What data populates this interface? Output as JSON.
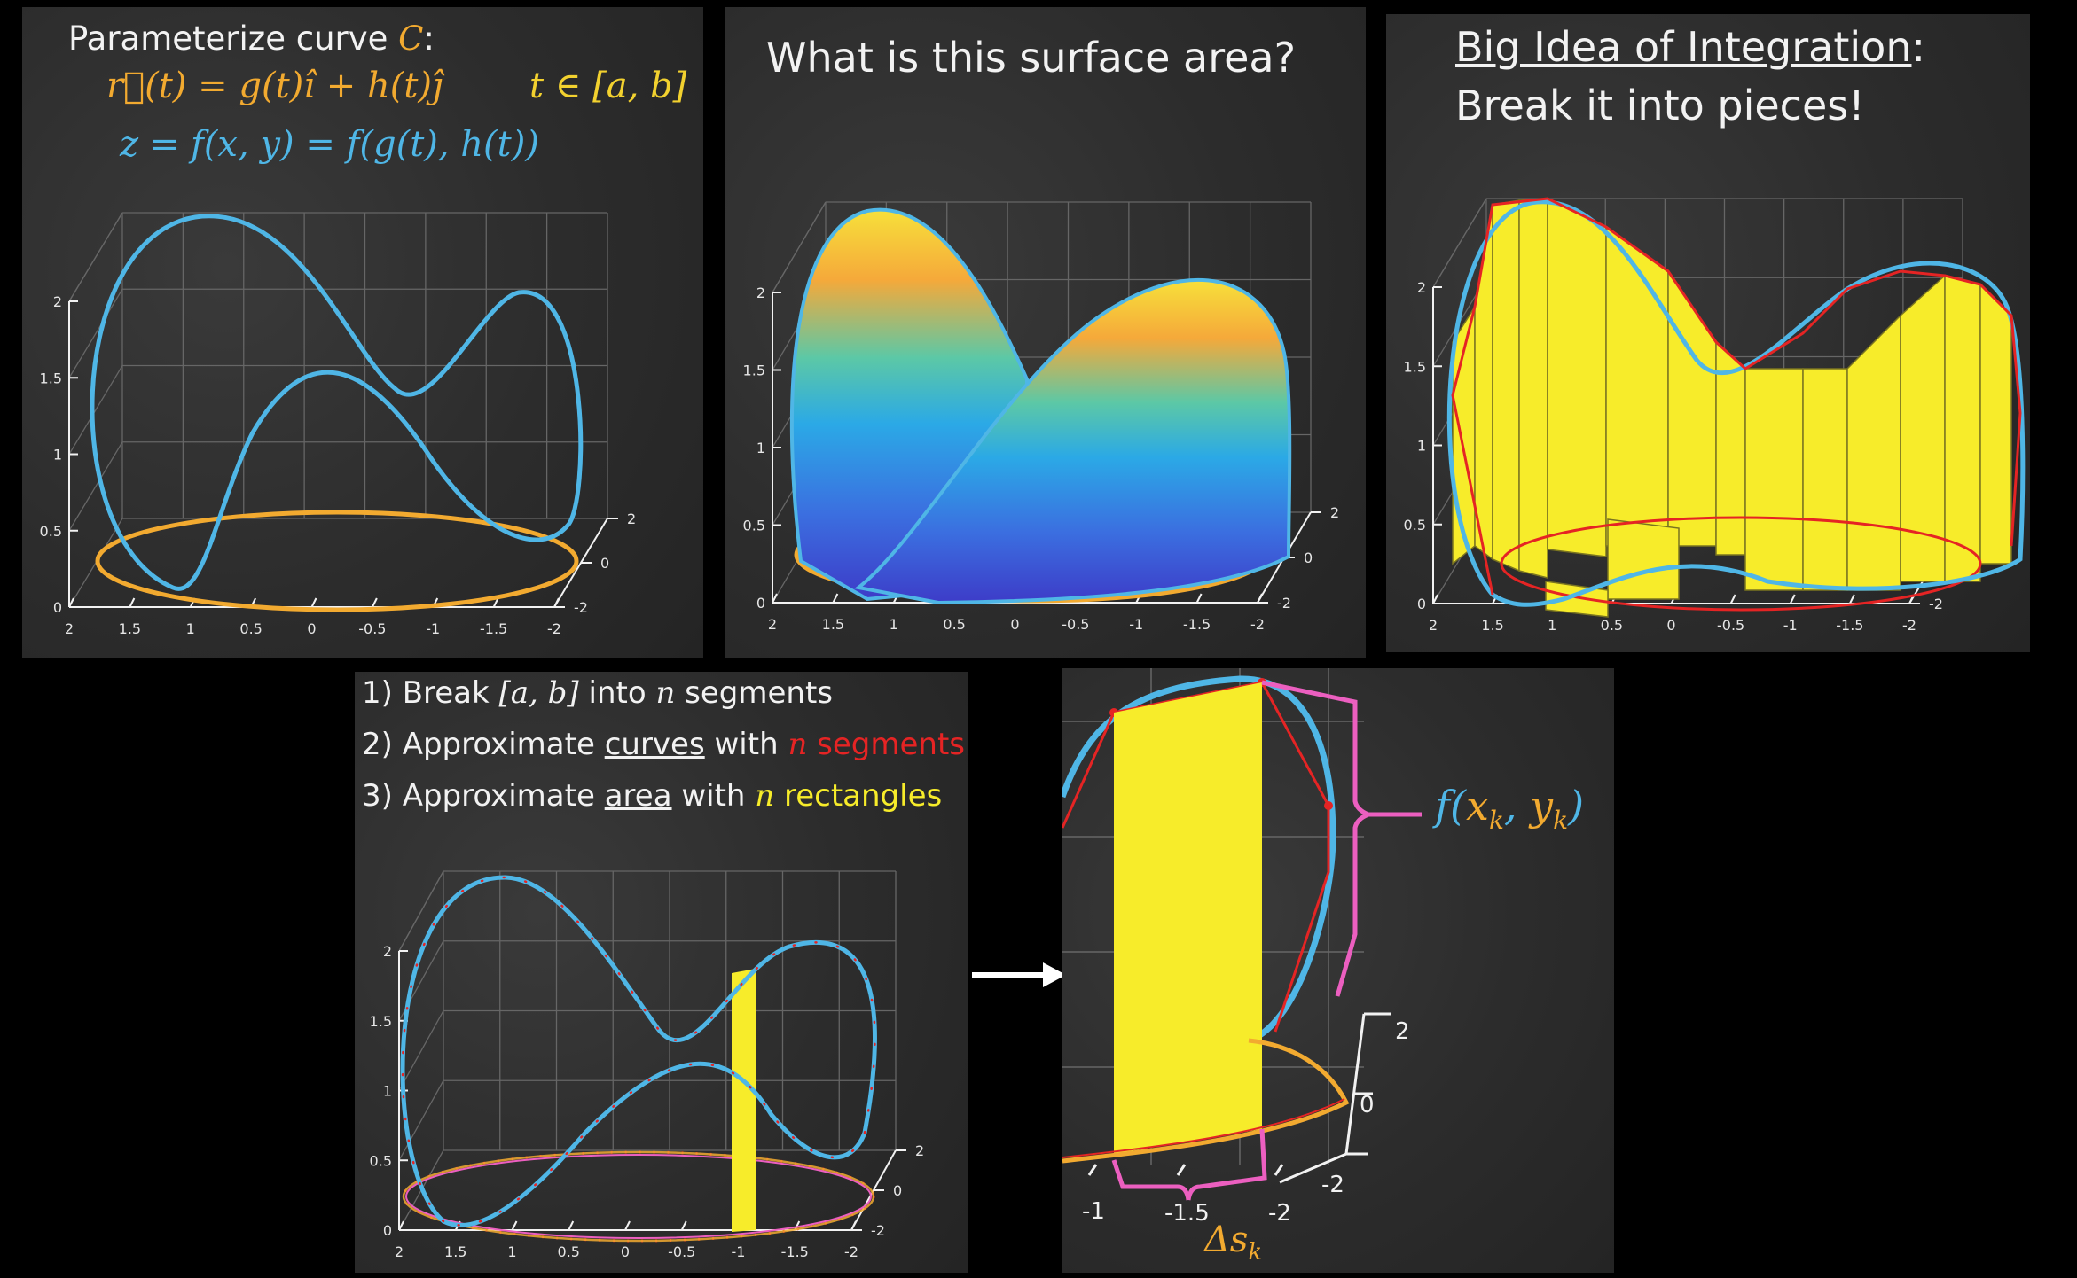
{
  "colors": {
    "blue": "#4fb6e6",
    "orange": "#f2aa30",
    "yellow": "#f7ec2a",
    "red": "#e52424",
    "pink": "#ec5fc0",
    "text": "#f2f2f2",
    "board": "#2f2f2f"
  },
  "panel1": {
    "title_prefix": "Parameterize curve ",
    "title_var": "C",
    "title_suffix": ":",
    "eq_r": "r⃗(t) = g(t)î + h(t)ĵ",
    "eq_t": "t ∈ [a, b]",
    "eq_z": "z = f(x, y) = f(g(t), h(t))"
  },
  "panel2": {
    "title": "What is this surface area?"
  },
  "panel3": {
    "title_underlined": "Big Idea of Integration",
    "title_colon": ":",
    "subtitle": "Break it into pieces!"
  },
  "panel4": {
    "step1_a": "1) Break ",
    "step1_math": "[a, b]",
    "step1_b": " into ",
    "step1_n": "n",
    "step1_c": " segments",
    "step2_a": "2) Approximate ",
    "step2_u": "curves",
    "step2_b": " with ",
    "step2_n": "n",
    "step2_c": " segments",
    "step3_a": "3) Approximate ",
    "step3_u": "area",
    "step3_b": " with ",
    "step3_n": "n",
    "step3_c": " rectangles"
  },
  "panel5": {
    "label_f": "f(",
    "label_x": "x",
    "label_xsub": "k",
    "label_comma": ", ",
    "label_y": "y",
    "label_ysub": "k",
    "label_close": ")",
    "label_ds": "Δs",
    "label_ds_sub": "k",
    "ticks_x": [
      "-1",
      "-1.5",
      "-2"
    ],
    "ticks_y": [
      "2",
      "0",
      "-2"
    ]
  },
  "axes": {
    "z_ticks": [
      "0",
      "0.5",
      "1",
      "1.5",
      "2"
    ],
    "x_ticks": [
      "2",
      "1.5",
      "1",
      "0.5",
      "0",
      "-0.5",
      "-1",
      "-1.5",
      "-2"
    ],
    "y_ticks": [
      "2",
      "0",
      "-2"
    ]
  }
}
